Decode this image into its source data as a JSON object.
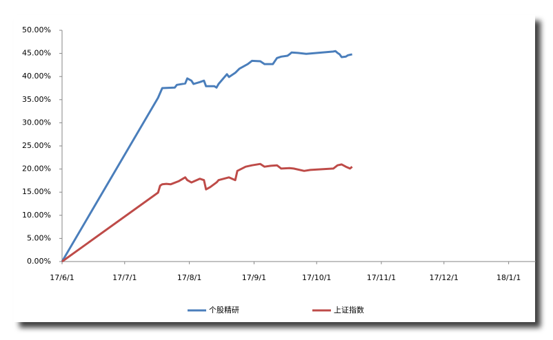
{
  "chart_data": {
    "type": "line",
    "xlim": [
      "17/6/1",
      "18/1/14"
    ],
    "xticks": [
      "17/6/1",
      "17/7/1",
      "17/8/1",
      "17/9/1",
      "17/10/1",
      "17/11/1",
      "17/12/1",
      "18/1/1"
    ],
    "ylim": [
      0,
      50
    ],
    "yticks": [
      {
        "value": 0,
        "label": "0.00%"
      },
      {
        "value": 5,
        "label": "5.00%"
      },
      {
        "value": 10,
        "label": "10.00%"
      },
      {
        "value": 15,
        "label": "15.00%"
      },
      {
        "value": 20,
        "label": "20.00%"
      },
      {
        "value": 25,
        "label": "25.00%"
      },
      {
        "value": 30,
        "label": "30.00%"
      },
      {
        "value": 35,
        "label": "35.00%"
      },
      {
        "value": 40,
        "label": "40.00%"
      },
      {
        "value": 45,
        "label": "45.00%"
      },
      {
        "value": 50,
        "label": "50.00%"
      }
    ],
    "legend": "bottom",
    "series": [
      {
        "name": "个股精研",
        "color": "#4a7ebb",
        "x": [
          "17/6/1",
          "17/7/17",
          "17/7/19",
          "17/7/25",
          "17/7/26",
          "17/7/30",
          "17/7/31",
          "17/8/2",
          "17/8/3",
          "17/8/6",
          "17/8/8",
          "17/8/9",
          "17/8/13",
          "17/8/14",
          "17/8/15",
          "17/8/19",
          "17/8/20",
          "17/8/23",
          "17/8/25",
          "17/8/29",
          "17/8/31",
          "17/9/4",
          "17/9/6",
          "17/9/10",
          "17/9/12",
          "17/9/14",
          "17/9/17",
          "17/9/18",
          "17/9/19",
          "17/9/22",
          "17/9/26",
          "17/10/9",
          "17/10/10",
          "17/10/11",
          "17/10/12",
          "17/10/13",
          "17/10/15",
          "17/10/16",
          "17/10/18"
        ],
        "values": [
          0,
          35.4,
          37.5,
          37.6,
          38.2,
          38.5,
          39.6,
          39.1,
          38.4,
          38.8,
          39.1,
          37.9,
          37.9,
          37.6,
          38.4,
          40.5,
          39.9,
          40.8,
          41.7,
          42.7,
          43.4,
          43.3,
          42.7,
          42.7,
          44.0,
          44.3,
          44.5,
          44.8,
          45.2,
          45.1,
          44.9,
          45.4,
          45.5,
          45.1,
          44.8,
          44.2,
          44.3,
          44.6,
          44.8
        ]
      },
      {
        "name": "上证指数",
        "color": "#be4b48",
        "x": [
          "17/6/1",
          "17/7/17",
          "17/7/18",
          "17/7/19",
          "17/7/21",
          "17/7/23",
          "17/7/27",
          "17/7/30",
          "17/7/31",
          "17/8/2",
          "17/8/6",
          "17/8/8",
          "17/8/9",
          "17/8/11",
          "17/8/14",
          "17/8/15",
          "17/8/20",
          "17/8/23",
          "17/8/24",
          "17/8/28",
          "17/8/31",
          "17/9/4",
          "17/9/6",
          "17/9/9",
          "17/9/12",
          "17/9/14",
          "17/9/18",
          "17/9/20",
          "17/9/25",
          "17/9/28",
          "17/10/9",
          "17/10/11",
          "17/10/13",
          "17/10/15",
          "17/10/17",
          "17/10/18"
        ],
        "values": [
          0,
          14.9,
          16.4,
          16.7,
          16.8,
          16.7,
          17.4,
          18.2,
          17.6,
          17.1,
          17.9,
          17.6,
          15.6,
          16.1,
          17.1,
          17.6,
          18.2,
          17.6,
          19.6,
          20.5,
          20.8,
          21.1,
          20.5,
          20.7,
          20.8,
          20.1,
          20.2,
          20.1,
          19.6,
          19.8,
          20.1,
          20.8,
          21.0,
          20.5,
          20.1,
          20.5
        ]
      }
    ]
  }
}
